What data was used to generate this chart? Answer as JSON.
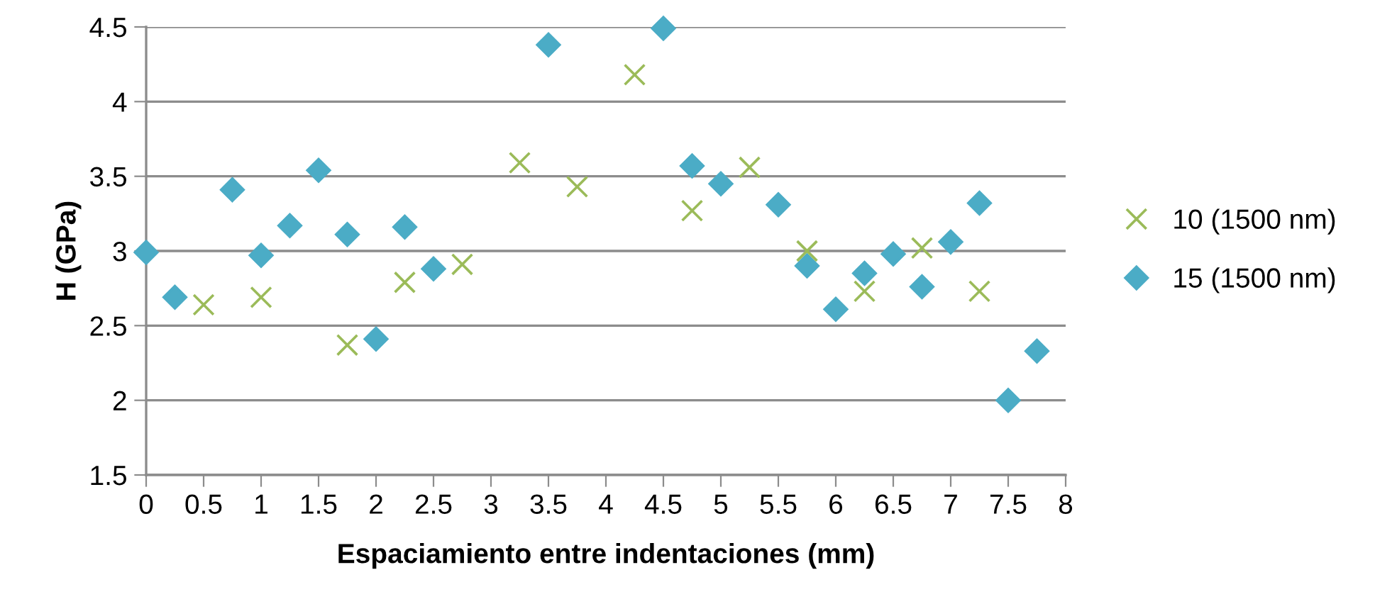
{
  "chart_data": {
    "type": "scatter",
    "xlabel": "Espaciamiento entre indentaciones (mm)",
    "ylabel": "H (GPa)",
    "xlim": [
      0,
      8
    ],
    "ylim": [
      1.5,
      4.5
    ],
    "xticks": [
      0,
      0.5,
      1,
      1.5,
      2,
      2.5,
      3,
      3.5,
      4,
      4.5,
      5,
      5.5,
      6,
      6.5,
      7,
      7.5,
      8
    ],
    "yticks": [
      1.5,
      2,
      2.5,
      3,
      3.5,
      4,
      4.5
    ],
    "grid": "y",
    "legend": "right",
    "series": [
      {
        "name": "10 (1500 nm)",
        "color": "#9bbb59",
        "marker": "cross",
        "x": [
          0.5,
          1,
          1.75,
          2.25,
          2.75,
          3.25,
          3.75,
          4.25,
          4.75,
          5.25,
          5.75,
          6.25,
          6.75,
          7.25
        ],
        "values": [
          2.64,
          2.69,
          2.37,
          2.79,
          2.91,
          3.59,
          3.43,
          4.18,
          3.27,
          3.56,
          3.0,
          2.73,
          3.02,
          2.73
        ]
      },
      {
        "name": "15 (1500 nm)",
        "color": "#4bacc6",
        "marker": "diamond",
        "x": [
          0,
          0.25,
          0.75,
          1,
          1.25,
          1.5,
          1.75,
          2,
          2.25,
          2.5,
          3.5,
          4.5,
          4.75,
          5,
          5.5,
          5.75,
          6,
          6.25,
          6.5,
          6.75,
          7,
          7.25,
          7.5,
          7.75
        ],
        "values": [
          2.99,
          2.69,
          3.41,
          2.97,
          3.17,
          3.54,
          3.11,
          2.41,
          3.16,
          2.88,
          4.38,
          4.49,
          3.57,
          3.45,
          3.31,
          2.9,
          2.61,
          2.85,
          2.98,
          2.76,
          3.06,
          3.32,
          2.0,
          2.33
        ]
      }
    ]
  }
}
